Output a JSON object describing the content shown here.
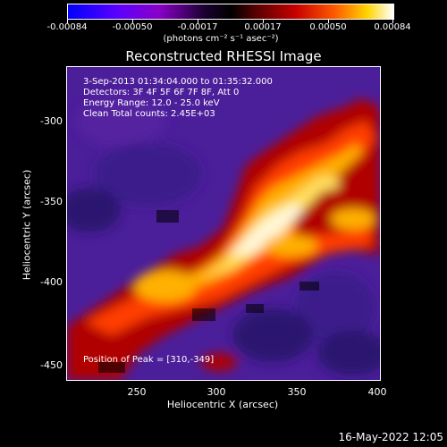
{
  "colorbar": {
    "labels": [
      "-0.00084",
      "-0.00050",
      "-0.00017",
      "0.00017",
      "0.00050",
      "0.00084"
    ],
    "units": "(photons cm⁻² s⁻¹ asec⁻²)"
  },
  "title": "Reconstructed RHESSI Image",
  "annotation": {
    "line1": "3-Sep-2013 01:34:04.000 to 01:35:32.000",
    "line2": "Detectors: 3F 4F 5F 6F 7F 8F, Att 0",
    "line3": "Energy Range: 12.0 - 25.0 keV",
    "line4": "Clean    Total counts: 2.45E+03",
    "peak": "Position of Peak = [310,-349]"
  },
  "axes": {
    "xlabel": "Heliocentric X (arcsec)",
    "ylabel": "Heliocentric Y (arcsec)",
    "xticks": [
      "250",
      "300",
      "350",
      "400"
    ],
    "yticks": [
      "-300",
      "-350",
      "-400",
      "-450"
    ]
  },
  "footer_date": "16-May-2022 12:05"
}
